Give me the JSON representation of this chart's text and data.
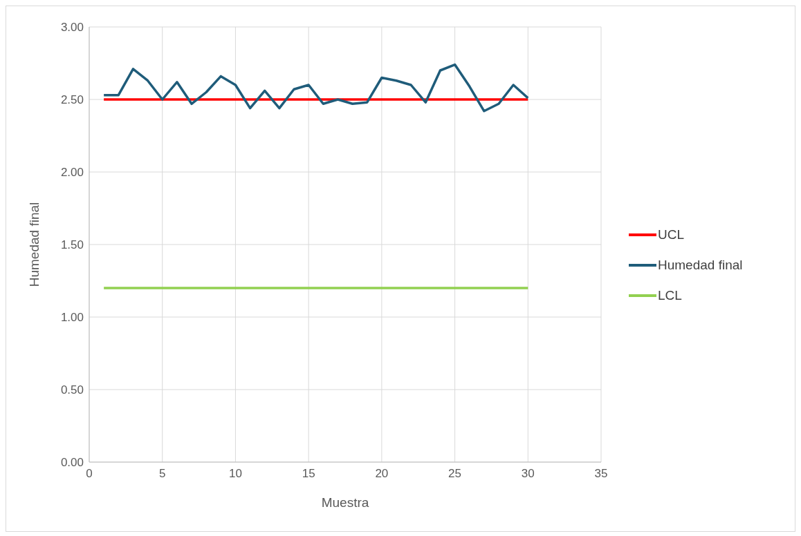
{
  "chart_data": {
    "type": "line",
    "xlabel": "Muestra",
    "ylabel": "Humedad final",
    "x": [
      1,
      2,
      3,
      4,
      5,
      6,
      7,
      8,
      9,
      10,
      11,
      12,
      13,
      14,
      15,
      16,
      17,
      18,
      19,
      20,
      21,
      22,
      23,
      24,
      25,
      26,
      27,
      28,
      29,
      30
    ],
    "series": [
      {
        "name": "UCL",
        "color": "#ff0000",
        "values": [
          2.5,
          2.5,
          2.5,
          2.5,
          2.5,
          2.5,
          2.5,
          2.5,
          2.5,
          2.5,
          2.5,
          2.5,
          2.5,
          2.5,
          2.5,
          2.5,
          2.5,
          2.5,
          2.5,
          2.5,
          2.5,
          2.5,
          2.5,
          2.5,
          2.5,
          2.5,
          2.5,
          2.5,
          2.5,
          2.5
        ]
      },
      {
        "name": "Humedad final",
        "color": "#1f5c7a",
        "values": [
          2.53,
          2.53,
          2.71,
          2.63,
          2.5,
          2.62,
          2.47,
          2.55,
          2.66,
          2.6,
          2.44,
          2.56,
          2.44,
          2.57,
          2.6,
          2.47,
          2.5,
          2.47,
          2.48,
          2.65,
          2.63,
          2.6,
          2.48,
          2.7,
          2.74,
          2.59,
          2.42,
          2.47,
          2.6,
          2.51
        ]
      },
      {
        "name": "LCL",
        "color": "#92d050",
        "values": [
          1.2,
          1.2,
          1.2,
          1.2,
          1.2,
          1.2,
          1.2,
          1.2,
          1.2,
          1.2,
          1.2,
          1.2,
          1.2,
          1.2,
          1.2,
          1.2,
          1.2,
          1.2,
          1.2,
          1.2,
          1.2,
          1.2,
          1.2,
          1.2,
          1.2,
          1.2,
          1.2,
          1.2,
          1.2,
          1.2
        ]
      }
    ],
    "xlim": [
      0,
      35
    ],
    "xticks": [
      0,
      5,
      10,
      15,
      20,
      25,
      30,
      35
    ],
    "ylim": [
      0,
      3
    ],
    "yticks": [
      {
        "value": 0,
        "label": "0.00"
      },
      {
        "value": 0.5,
        "label": "0.50"
      },
      {
        "value": 1,
        "label": "1.00"
      },
      {
        "value": 1.5,
        "label": "1.50"
      },
      {
        "value": 2,
        "label": "2.00"
      },
      {
        "value": 2.5,
        "label": "2.50"
      },
      {
        "value": 3,
        "label": "3.00"
      }
    ],
    "grid": true,
    "legend": "right",
    "marker": "none",
    "line_style": "solid"
  }
}
